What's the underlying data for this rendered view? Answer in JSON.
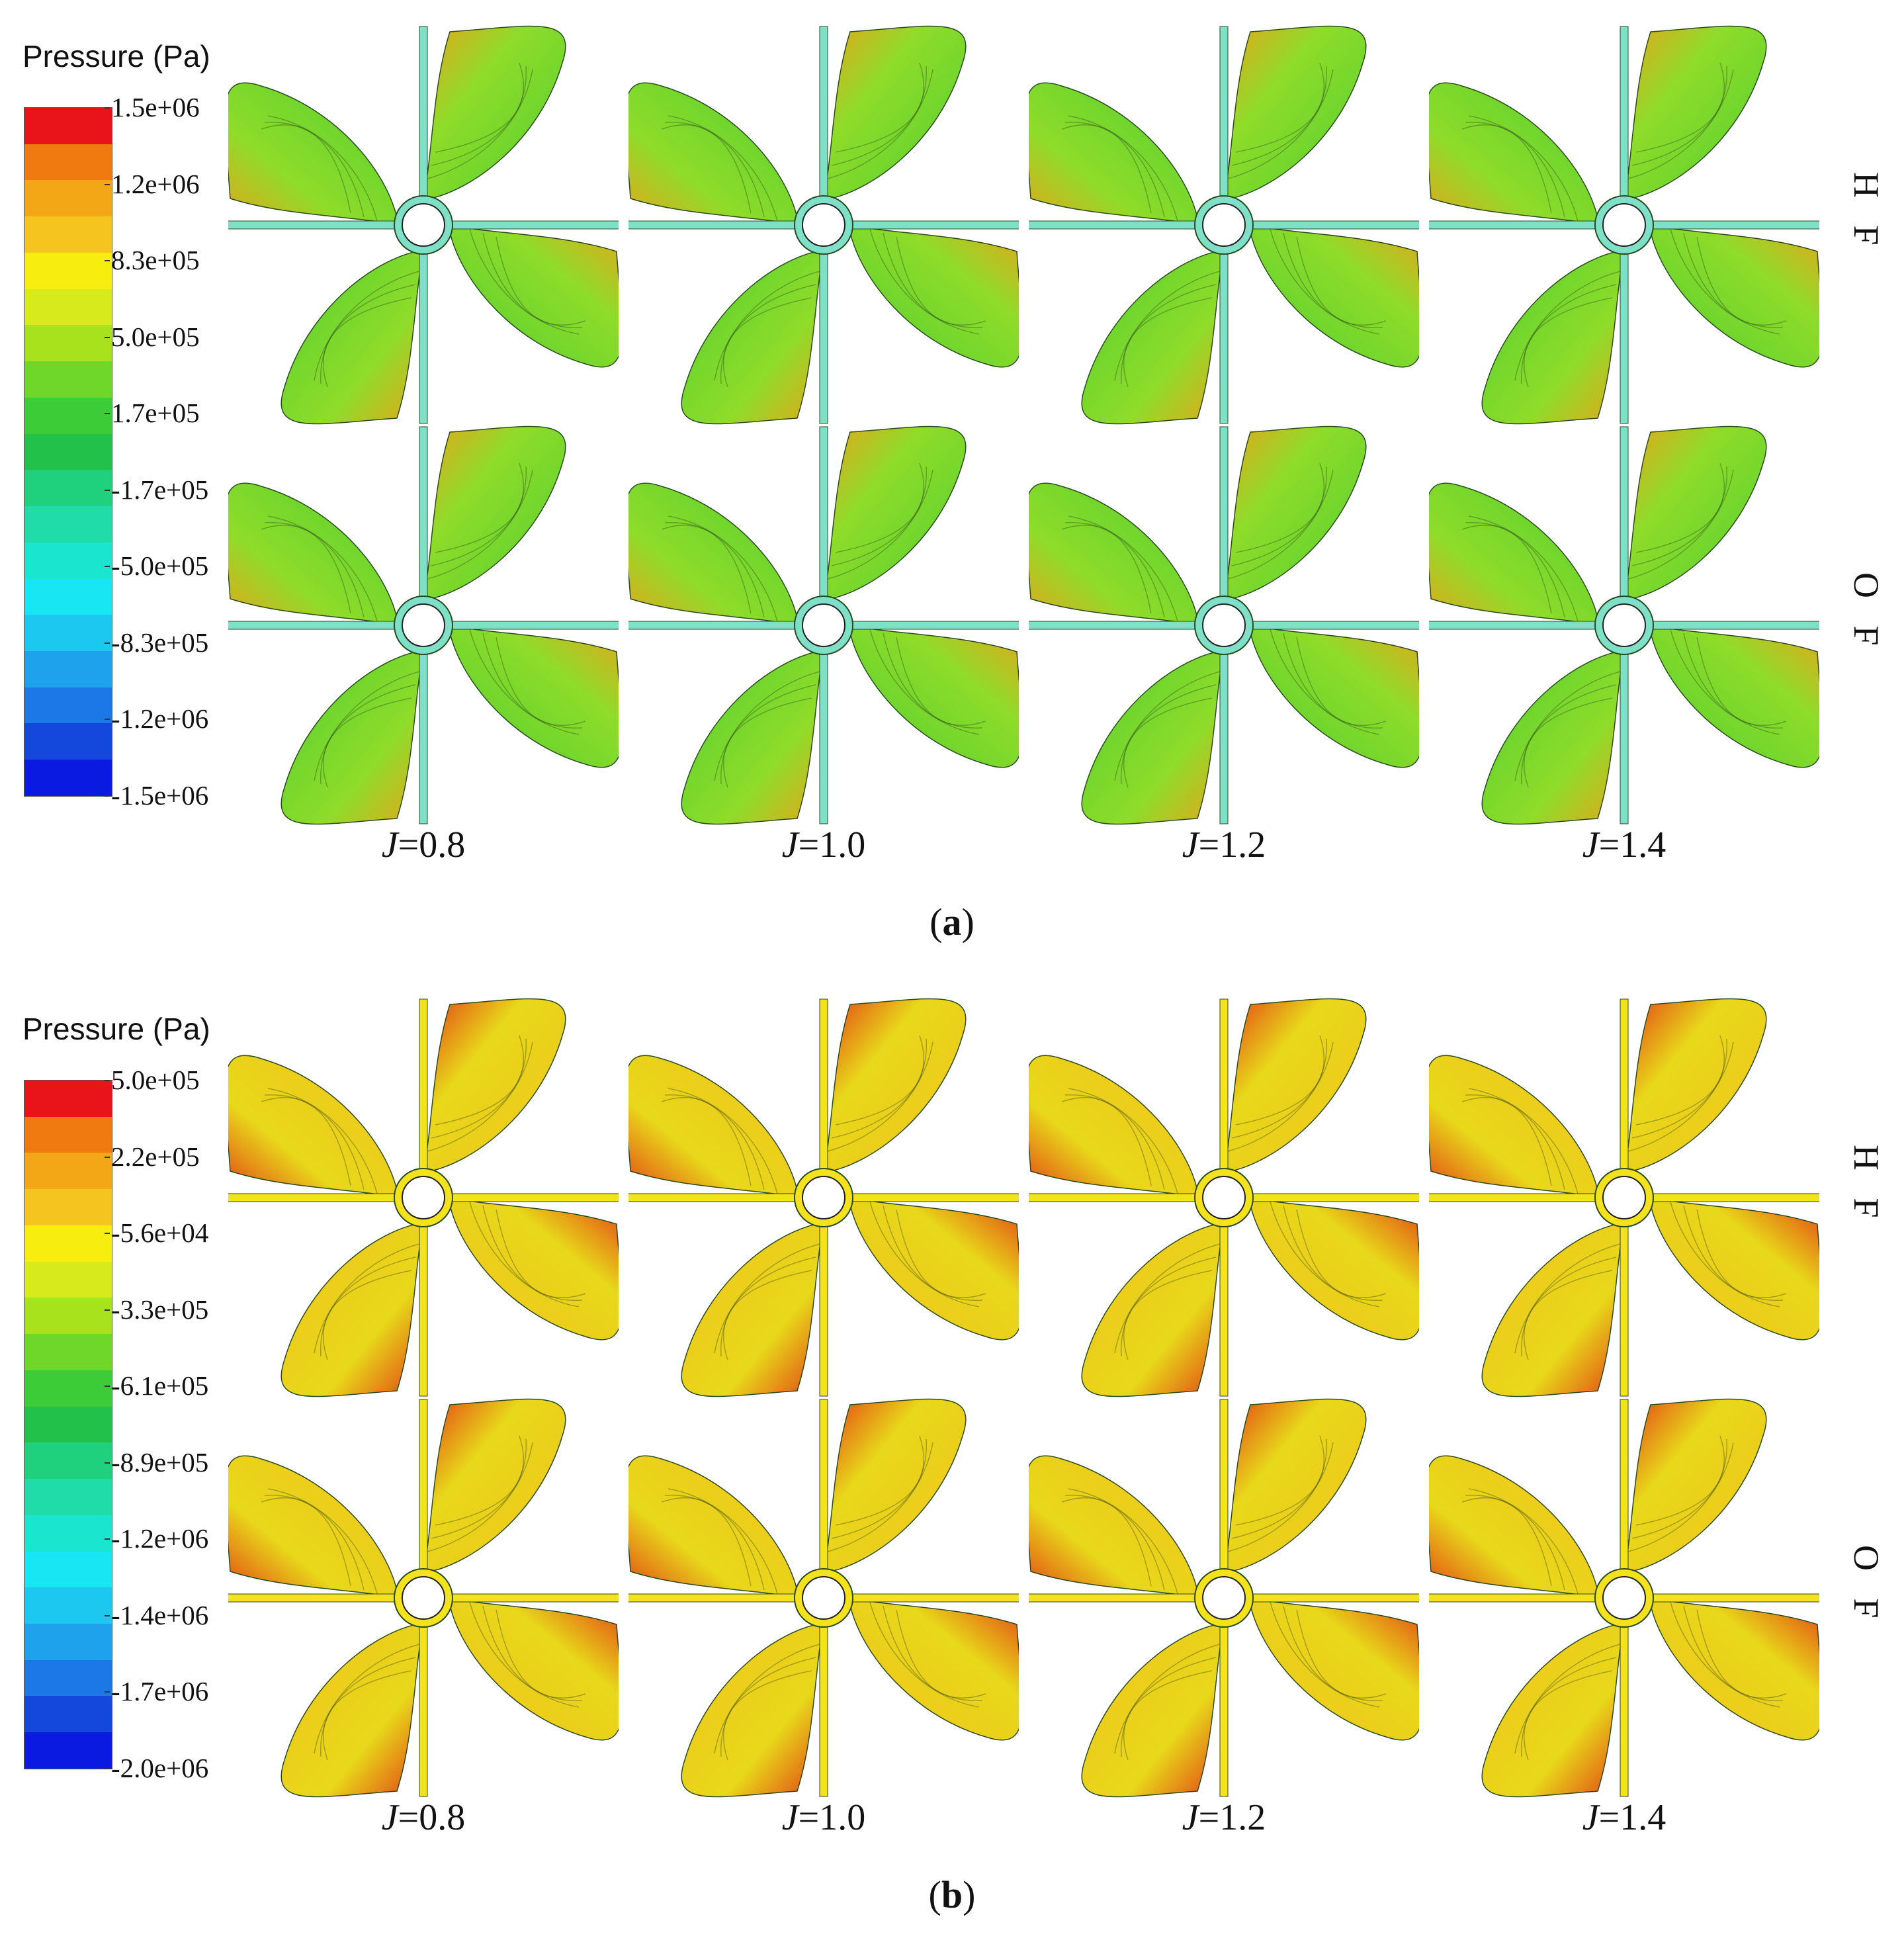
{
  "panels": [
    {
      "id": "a",
      "caption_open": "(",
      "caption_letter": "a",
      "caption_close": ")",
      "legend": {
        "title": "Pressure (Pa)",
        "ticks": [
          "1.5e+06",
          "1.2e+06",
          "8.3e+05",
          "5.0e+05",
          "1.7e+05",
          "-1.7e+05",
          "-5.0e+05",
          "-8.3e+05",
          "-1.2e+06",
          "-1.5e+06"
        ],
        "colors": [
          "#e8141a",
          "#f07a10",
          "#f3a716",
          "#f5c41e",
          "#f7ee10",
          "#d6ea1c",
          "#a8e21c",
          "#6fd62a",
          "#3ccc38",
          "#22c24a",
          "#1fd07c",
          "#1fdca8",
          "#1ae6d0",
          "#18e6f2",
          "#1cc8f0",
          "#1ea2ec",
          "#1b78e6",
          "#1448dc",
          "#0a1ae0"
        ]
      },
      "row_labels": [
        "H F",
        "O F"
      ],
      "columns": [
        {
          "label_var": "J",
          "label_rest": "=0.8"
        },
        {
          "label_var": "J",
          "label_rest": "=1.0"
        },
        {
          "label_var": "J",
          "label_rest": "=1.2"
        },
        {
          "label_var": "J",
          "label_rest": "=1.4"
        }
      ],
      "blade_fill": "#4fcf2e",
      "blade_mid": "#8fdc2a",
      "blade_edge": "#e8a41a",
      "hub_fill": "#7fe0c8"
    },
    {
      "id": "b",
      "caption_open": "(",
      "caption_letter": "b",
      "caption_close": ")",
      "legend": {
        "title": "Pressure (Pa)",
        "ticks": [
          "5.0e+05",
          "2.2e+05",
          "-5.6e+04",
          "-3.3e+05",
          "-6.1e+05",
          "-8.9e+05",
          "-1.2e+06",
          "-1.4e+06",
          "-1.7e+06",
          "-2.0e+06"
        ],
        "colors": [
          "#e8141a",
          "#f07a10",
          "#f3a716",
          "#f5c41e",
          "#f7ee10",
          "#d6ea1c",
          "#a8e21c",
          "#6fd62a",
          "#3ccc38",
          "#22c24a",
          "#1fd07c",
          "#1fdca8",
          "#1ae6d0",
          "#18e6f2",
          "#1cc8f0",
          "#1ea2ec",
          "#1b78e6",
          "#1448dc",
          "#0a1ae0"
        ]
      },
      "row_labels": [
        "H F",
        "O F"
      ],
      "columns": [
        {
          "label_var": "J",
          "label_rest": "=0.8"
        },
        {
          "label_var": "J",
          "label_rest": "=1.0"
        },
        {
          "label_var": "J",
          "label_rest": "=1.2"
        },
        {
          "label_var": "J",
          "label_rest": "=1.4"
        }
      ],
      "blade_fill": "#f0c21c",
      "blade_mid": "#e8d81a",
      "blade_edge": "#e23a14",
      "hub_fill": "#f3e21c"
    }
  ]
}
